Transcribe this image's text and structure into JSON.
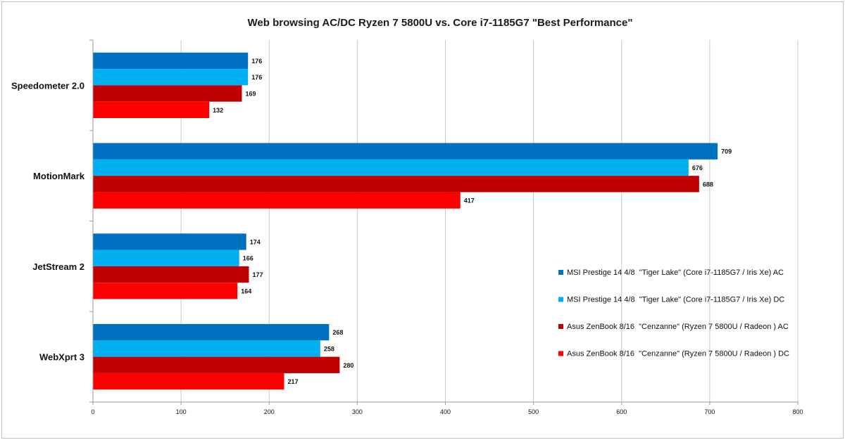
{
  "chart_data": {
    "type": "bar",
    "orientation": "horizontal",
    "title": "Web browsing AC/DC Ryzen 7 5800U vs. Core i7-1185G7 \"Best Performance\"",
    "xlabel": "",
    "ylabel": "",
    "xlim": [
      0,
      800
    ],
    "xticks": [
      0,
      100,
      200,
      300,
      400,
      500,
      600,
      700,
      800
    ],
    "grid": true,
    "legend_position": "right",
    "categories": [
      "Speedometer 2.0",
      "MotionMark",
      "JetStream 2",
      "WebXprt 3"
    ],
    "series": [
      {
        "name": "MSI Prestige 14 4/8  \"Tiger Lake\" (Core i7-1185G7 / Iris Xe) AC",
        "color": "#0070c0",
        "values": [
          176,
          709,
          174,
          268
        ]
      },
      {
        "name": "MSI Prestige 14 4/8  \"Tiger Lake\" (Core i7-1185G7 / Iris Xe) DC",
        "color": "#00b0f0",
        "values": [
          176,
          676,
          166,
          258
        ]
      },
      {
        "name": "Asus ZenBook 8/16  \"Cenzanne\" (Ryzen 7 5800U / Radeon ) AC",
        "color": "#c00000",
        "values": [
          169,
          688,
          177,
          280
        ]
      },
      {
        "name": "Asus ZenBook 8/16  \"Cenzanne\" (Ryzen 7 5800U / Radeon ) DC",
        "color": "#ff0000",
        "values": [
          132,
          417,
          164,
          217
        ]
      }
    ]
  }
}
